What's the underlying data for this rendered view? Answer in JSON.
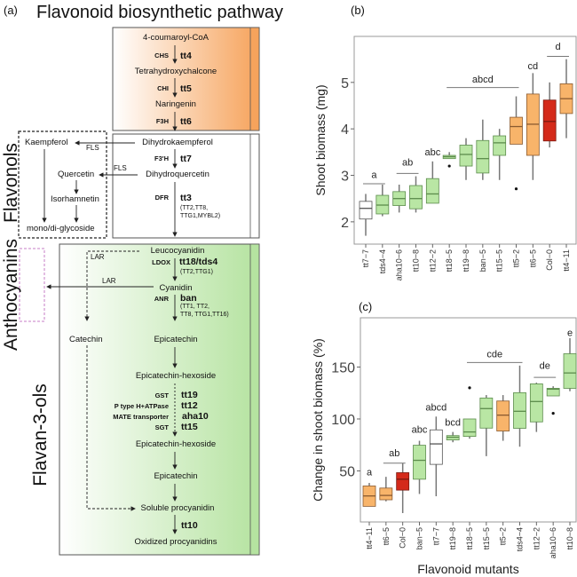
{
  "panel_a": {
    "label": "(a)",
    "title": "Flavonoid biosynthetic pathway",
    "sections": {
      "flavonols": "Flavonols",
      "anthocyanins": "Anthocyanins",
      "flavan3ols": "Flavan-3-ols"
    },
    "compounds": {
      "coumaroyl": "4-coumaroyl-CoA",
      "tetrahydroxychalcone": "Tetrahydroxychalcone",
      "naringenin": "Naringenin",
      "dihydrokaempferol": "Dihydrokaempferol",
      "dihydroquercetin": "Dihydroquercetin",
      "kaempferol": "Kaempferol",
      "quercetin": "Quercetin",
      "isorhamnetin": "Isorhamnetin",
      "glycoside": "mono/di-glycoside",
      "leucocyanidin": "Leucocyanidin",
      "cyanidin": "Cyanidin",
      "catechin": "Catechin",
      "epicatechin1": "Epicatechin",
      "hexoside1": "Epicatechin-hexoside",
      "hexoside2": "Epicatechin-hexoside",
      "epicatechin2": "Epicatechin",
      "soluble": "Soluble procyanidin",
      "oxidized": "Oxidized procyanidins"
    },
    "enzymes": {
      "chs": "CHS",
      "chi": "CHI",
      "f3h": "F3H",
      "f3ph": "F3'H",
      "dfr": "DFR",
      "fls1": "FLS",
      "fls2": "FLS",
      "lar1": "LAR",
      "lar2": "LAR",
      "ldox": "LDOX",
      "anr": "ANR",
      "gst": "GST",
      "ptype": "P type H+ATPase",
      "mate": "MATE transporter",
      "sgt": "SGT"
    },
    "genes": {
      "tt4": "tt4",
      "tt5": "tt5",
      "tt6": "tt6",
      "tt7": "tt7",
      "tt3": "tt3",
      "tt18": "tt18/tds4",
      "ban": "ban",
      "tt19": "tt19",
      "tt12": "tt12",
      "aha10": "aha10",
      "tt15": "tt15",
      "tt10": "tt10"
    },
    "regulators": {
      "tt3_1": "(TT2,TT8,",
      "tt3_2": "TTG1,MYBL2)",
      "tt18": "(TT2,TTG1)",
      "ban_1": "(TT1, TT2,",
      "ban_2": "TT8, TTG1,TT16)"
    },
    "colors": {
      "orange": "#f6a35c",
      "green": "#b5e3a0",
      "anthocyanin_box": "#c77dc7"
    }
  },
  "chart_data": [
    {
      "type": "box",
      "panel_label": "(b)",
      "ylabel": "Shoot biomass (mg)",
      "xlabel": "",
      "ylim": [
        1.52,
        5.99
      ],
      "yticks": [
        2,
        3,
        4,
        5
      ],
      "categories": [
        "tt7−7",
        "tds4−4",
        "aha10−6",
        "tt10−8",
        "tt12−2",
        "tt18−5",
        "tt19−8",
        "ban−5",
        "tt15−5",
        "tt5−2",
        "tt6−5",
        "Col−0",
        "tt4−11"
      ],
      "boxes": [
        {
          "low": 1.7,
          "q1": 2.06,
          "median": 2.29,
          "q3": 2.44,
          "high": 2.6,
          "color": "white",
          "outliers": []
        },
        {
          "low": 2.12,
          "q1": 2.17,
          "median": 2.36,
          "q3": 2.57,
          "high": 2.8,
          "color": "green",
          "outliers": []
        },
        {
          "low": 2.2,
          "q1": 2.35,
          "median": 2.5,
          "q3": 2.65,
          "high": 2.8,
          "color": "green",
          "outliers": []
        },
        {
          "low": 2.2,
          "q1": 2.28,
          "median": 2.5,
          "q3": 2.78,
          "high": 2.98,
          "color": "green",
          "outliers": []
        },
        {
          "low": 2.4,
          "q1": 2.4,
          "median": 2.6,
          "q3": 2.93,
          "high": 3.3,
          "color": "green",
          "outliers": []
        },
        {
          "low": 3.36,
          "q1": 3.36,
          "median": 3.4,
          "q3": 3.43,
          "high": 3.5,
          "color": "green",
          "outliers": [
            3.2
          ]
        },
        {
          "low": 2.9,
          "q1": 3.2,
          "median": 3.45,
          "q3": 3.65,
          "high": 3.8,
          "color": "green",
          "outliers": []
        },
        {
          "low": 2.9,
          "q1": 3.05,
          "median": 3.36,
          "q3": 3.75,
          "high": 4.2,
          "color": "green",
          "outliers": []
        },
        {
          "low": 2.9,
          "q1": 3.43,
          "median": 3.7,
          "q3": 3.85,
          "high": 4.0,
          "color": "green",
          "outliers": []
        },
        {
          "low": 3.67,
          "q1": 3.67,
          "median": 4.05,
          "q3": 4.25,
          "high": 4.7,
          "color": "orange",
          "outliers": [
            2.71
          ]
        },
        {
          "low": 2.9,
          "q1": 3.43,
          "median": 4.1,
          "q3": 4.75,
          "high": 5.2,
          "color": "orange",
          "outliers": []
        },
        {
          "low": 3.6,
          "q1": 3.74,
          "median": 4.16,
          "q3": 4.62,
          "high": 5.0,
          "color": "red",
          "outliers": []
        },
        {
          "low": 3.8,
          "q1": 4.33,
          "median": 4.65,
          "q3": 4.97,
          "high": 5.5,
          "color": "orange",
          "outliers": []
        }
      ],
      "groups": [
        {
          "label": "a",
          "from": 0,
          "to": 1,
          "line_y": 2.82,
          "text_y": 3.02,
          "line": true
        },
        {
          "label": "ab",
          "from": 2,
          "to": 3,
          "line_y": 3.04,
          "text_y": 3.29,
          "line": true
        },
        {
          "label": "abc",
          "from": 4,
          "to": 4,
          "text_y": 3.51,
          "line": false
        },
        {
          "label": "abcd",
          "from": 5,
          "to": 9,
          "line_y": 4.89,
          "text_y": 5.07,
          "line": true
        },
        {
          "label": "cd",
          "from": 10,
          "to": 10,
          "text_y": 5.36,
          "line": false
        },
        {
          "label": "d",
          "from": 11,
          "to": 12,
          "line_y": 5.56,
          "text_y": 5.78,
          "line": true
        }
      ]
    },
    {
      "type": "box",
      "panel_label": "(c)",
      "ylabel": "Change in shoot biomass (%)",
      "xlabel": "Flavonoid mutants",
      "ylim": [
        0.85,
        197.4
      ],
      "yticks": [
        50,
        100,
        150
      ],
      "categories": [
        "tt4−11",
        "tt6−5",
        "Col−0",
        "ban−5",
        "tt7−7",
        "tt19−8",
        "tt18−5",
        "tt15−5",
        "tt5−2",
        "tds4−4",
        "tt12−2",
        "aha10−6",
        "tt10−8"
      ],
      "boxes": [
        {
          "low": 15.9,
          "q1": 15.9,
          "median": 25.9,
          "q3": 35.5,
          "high": 38.4,
          "color": "orange",
          "outliers": []
        },
        {
          "low": 20.7,
          "q1": 22.2,
          "median": 26.4,
          "q3": 33.5,
          "high": 44.3,
          "color": "orange",
          "outliers": []
        },
        {
          "low": 9.4,
          "q1": 31.5,
          "median": 42,
          "q3": 48.3,
          "high": 57.4,
          "color": "red",
          "outliers": []
        },
        {
          "low": 27.8,
          "q1": 42,
          "median": 60.2,
          "q3": 74.7,
          "high": 79,
          "color": "green",
          "outliers": []
        },
        {
          "low": 25.6,
          "q1": 56.3,
          "median": 76,
          "q3": 89.5,
          "high": 102.3,
          "color": "white",
          "outliers": []
        },
        {
          "low": 77.6,
          "q1": 79.8,
          "median": 82.4,
          "q3": 84,
          "high": 87.5,
          "color": "green",
          "outliers": []
        },
        {
          "low": 81,
          "q1": 83.2,
          "median": 87.5,
          "q3": 100,
          "high": 100,
          "color": "green",
          "outliers": [
            130
          ]
        },
        {
          "low": 64.2,
          "q1": 91.2,
          "median": 110,
          "q3": 120.2,
          "high": 123,
          "color": "green",
          "outliers": []
        },
        {
          "low": 79,
          "q1": 88.4,
          "median": 103.7,
          "q3": 117.3,
          "high": 123,
          "color": "orange",
          "outliers": []
        },
        {
          "low": 73.3,
          "q1": 91,
          "median": 107.4,
          "q3": 125.3,
          "high": 151.4,
          "color": "green",
          "outliers": []
        },
        {
          "low": 87.5,
          "q1": 97.2,
          "median": 116.8,
          "q3": 133.8,
          "high": 135,
          "color": "green",
          "outliers": []
        },
        {
          "low": 122.2,
          "q1": 122.2,
          "median": 128.7,
          "q3": 129.5,
          "high": 131.5,
          "color": "green",
          "outliers": [
            105.4
          ]
        },
        {
          "low": 126.7,
          "q1": 129.5,
          "median": 144.3,
          "q3": 162.8,
          "high": 177.8,
          "color": "green",
          "outliers": []
        }
      ],
      "groups": [
        {
          "label": "a",
          "from": 0,
          "to": 0,
          "text_y": 49,
          "line": false
        },
        {
          "label": "ab",
          "from": 1,
          "to": 2,
          "line_y": 57.5,
          "text_y": 67.5,
          "line": true
        },
        {
          "label": "abc",
          "from": 3,
          "to": 3,
          "text_y": 90,
          "line": false
        },
        {
          "label": "abcd",
          "from": 4,
          "to": 4,
          "text_y": 111.4,
          "line": false
        },
        {
          "label": "bcd",
          "from": 5,
          "to": 5,
          "text_y": 97,
          "line": false
        },
        {
          "label": "cde",
          "from": 6,
          "to": 9,
          "line_y": 154.3,
          "text_y": 163,
          "line": true
        },
        {
          "label": "de",
          "from": 10,
          "to": 11,
          "line_y": 140,
          "text_y": 151.6,
          "line": true
        },
        {
          "label": "e",
          "from": 12,
          "to": 12,
          "text_y": 183.5,
          "line": false
        }
      ]
    }
  ]
}
